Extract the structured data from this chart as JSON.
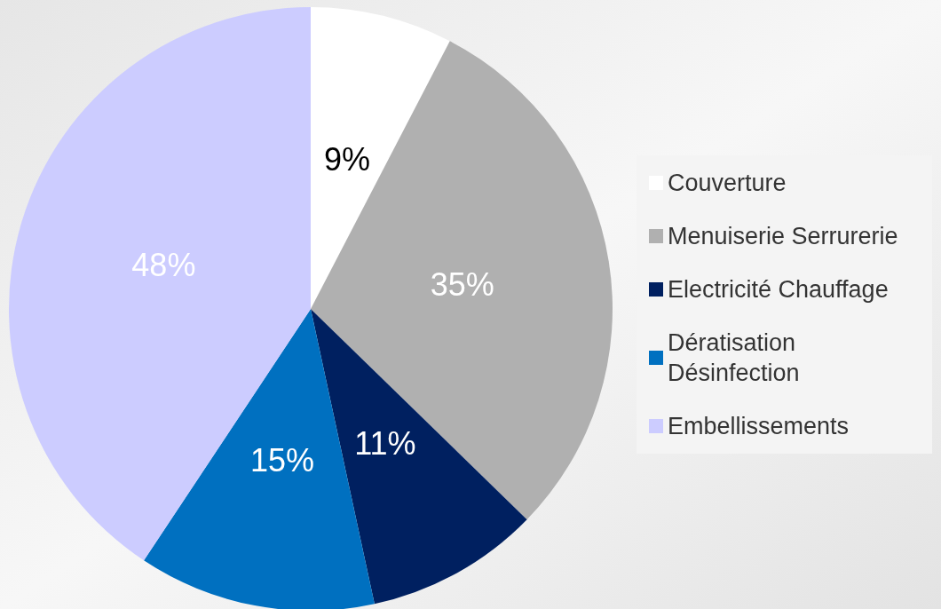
{
  "chart_data": {
    "type": "pie",
    "categories": [
      "Couverture",
      "Menuiserie Serrurerie",
      "Electricité Chauffage",
      "Dératisation Désinfection",
      "Embellissements"
    ],
    "values": [
      9,
      35,
      11,
      15,
      48
    ],
    "colors": [
      "#ffffff",
      "#b0b0b0",
      "#002060",
      "#0070c0",
      "#ccccff"
    ],
    "value_labels": [
      "9%",
      "35%",
      "11%",
      "15%",
      "48%"
    ],
    "legend": "right"
  }
}
